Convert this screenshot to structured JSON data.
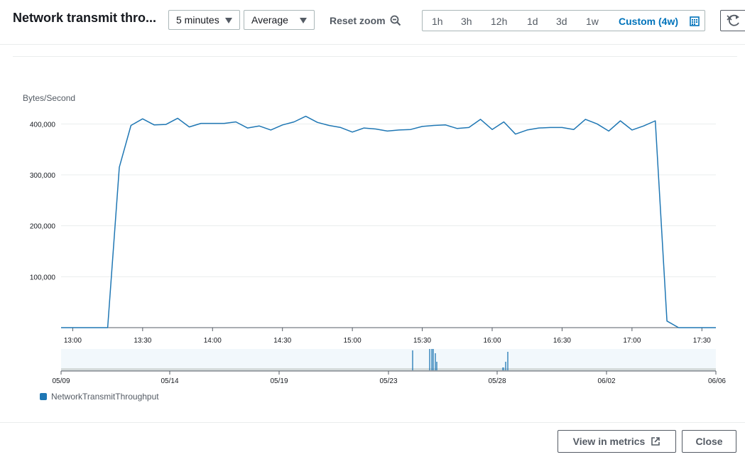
{
  "header": {
    "title": "Network transmit thro...",
    "period": "5 minutes",
    "statistic": "Average",
    "reset_zoom": "Reset zoom",
    "ranges": [
      "1h",
      "3h",
      "12h",
      "1d",
      "3d",
      "1w"
    ],
    "custom_range": "Custom (4w)"
  },
  "footer": {
    "view_in_metrics": "View in metrics",
    "close": "Close"
  },
  "colors": {
    "series": "#1f77b4",
    "accent": "#0073bb"
  },
  "chart_data": {
    "type": "line",
    "ylabel": "Bytes/Second",
    "ylim": [
      0,
      420000
    ],
    "yticks": [
      "100,000",
      "200,000",
      "300,000",
      "400,000"
    ],
    "ytick_values": [
      100000,
      200000,
      300000,
      400000
    ],
    "xticks": [
      "13:00",
      "13:30",
      "14:00",
      "14:30",
      "15:00",
      "15:30",
      "16:00",
      "16:30",
      "17:00",
      "17:30"
    ],
    "xtick_values": [
      0,
      30,
      60,
      90,
      120,
      150,
      180,
      210,
      240,
      270
    ],
    "x_unit": "minutes since 13:00",
    "series": [
      {
        "name": "NetworkTransmitThroughput",
        "x": [
          -5,
          15,
          20,
          25,
          30,
          35,
          40,
          45,
          50,
          55,
          60,
          65,
          70,
          75,
          80,
          85,
          90,
          95,
          100,
          105,
          110,
          115,
          120,
          125,
          130,
          135,
          140,
          145,
          150,
          155,
          160,
          165,
          170,
          175,
          180,
          185,
          190,
          195,
          200,
          205,
          210,
          215,
          220,
          225,
          230,
          235,
          240,
          245,
          250,
          255,
          260,
          265,
          270,
          276
        ],
        "y": [
          0,
          0,
          315000,
          397000,
          410000,
          398000,
          399000,
          411000,
          394000,
          401000,
          401000,
          401000,
          404000,
          392000,
          396000,
          388000,
          398000,
          404000,
          415000,
          403000,
          397000,
          393000,
          384000,
          392000,
          390000,
          386000,
          388000,
          389000,
          395000,
          397000,
          398000,
          391000,
          393000,
          409000,
          389000,
          404000,
          380000,
          388000,
          392000,
          393000,
          393000,
          389000,
          409000,
          400000,
          386000,
          406000,
          388000,
          396000,
          406000,
          13000,
          0,
          0,
          0,
          0
        ]
      }
    ],
    "navigator": {
      "ticks": [
        "05/09",
        "05/14",
        "05/19",
        "05/23",
        "05/28",
        "06/02",
        "06/06"
      ]
    },
    "legend": [
      "NetworkTransmitThroughput"
    ]
  }
}
